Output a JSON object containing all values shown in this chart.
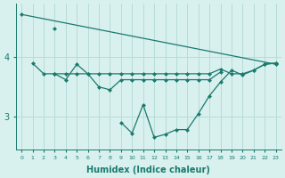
{
  "xlabel": "Humidex (Indice chaleur)",
  "bg_color": "#d8f0ee",
  "grid_color": "#b8dcd8",
  "line_color": "#1a7a6e",
  "x": [
    0,
    1,
    2,
    3,
    4,
    5,
    6,
    7,
    8,
    9,
    10,
    11,
    12,
    13,
    14,
    15,
    16,
    17,
    18,
    19,
    20,
    21,
    22,
    23
  ],
  "series_top": [
    4.72,
    null,
    null,
    4.48,
    null,
    null,
    null,
    null,
    null,
    null,
    null,
    null,
    null,
    null,
    null,
    null,
    null,
    null,
    null,
    null,
    null,
    null,
    null,
    3.88
  ],
  "series_A": [
    null,
    3.9,
    3.72,
    3.72,
    3.72,
    3.72,
    3.72,
    3.72,
    3.72,
    3.72,
    3.72,
    3.72,
    3.72,
    3.72,
    3.72,
    3.72,
    3.72,
    3.72,
    3.8,
    3.72,
    3.72,
    3.78,
    3.88,
    3.9
  ],
  "series_B": [
    null,
    null,
    null,
    3.72,
    3.62,
    3.88,
    3.72,
    3.5,
    3.45,
    3.62,
    3.62,
    3.62,
    3.62,
    3.62,
    3.62,
    3.62,
    3.62,
    3.62,
    3.75,
    null,
    null,
    null,
    null,
    null
  ],
  "series_C": [
    null,
    null,
    null,
    null,
    null,
    null,
    null,
    null,
    null,
    2.9,
    2.72,
    3.2,
    2.65,
    2.7,
    2.78,
    2.78,
    3.05,
    3.35,
    3.58,
    3.78,
    3.7,
    3.78,
    3.88,
    3.9
  ],
  "yticks": [
    3,
    4
  ],
  "ylim": [
    2.45,
    4.9
  ],
  "xlim": [
    -0.5,
    23.5
  ]
}
